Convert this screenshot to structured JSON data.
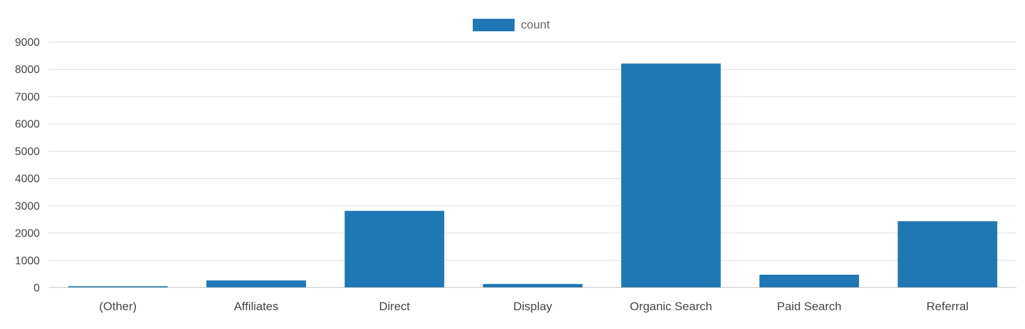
{
  "chart_data": {
    "type": "bar",
    "title": "",
    "xlabel": "",
    "ylabel": "",
    "categories": [
      "(Other)",
      "Affiliates",
      "Direct",
      "Display",
      "Organic Search",
      "Paid Search",
      "Referral"
    ],
    "series": [
      {
        "name": "count",
        "color": "#1f77b4",
        "values": [
          30,
          250,
          2800,
          120,
          8200,
          460,
          2420
        ]
      }
    ],
    "ylim": [
      0,
      9000
    ],
    "yticks": [
      0,
      1000,
      2000,
      3000,
      4000,
      5000,
      6000,
      7000,
      8000,
      9000
    ],
    "grid": true,
    "legend_position": "top-center"
  }
}
